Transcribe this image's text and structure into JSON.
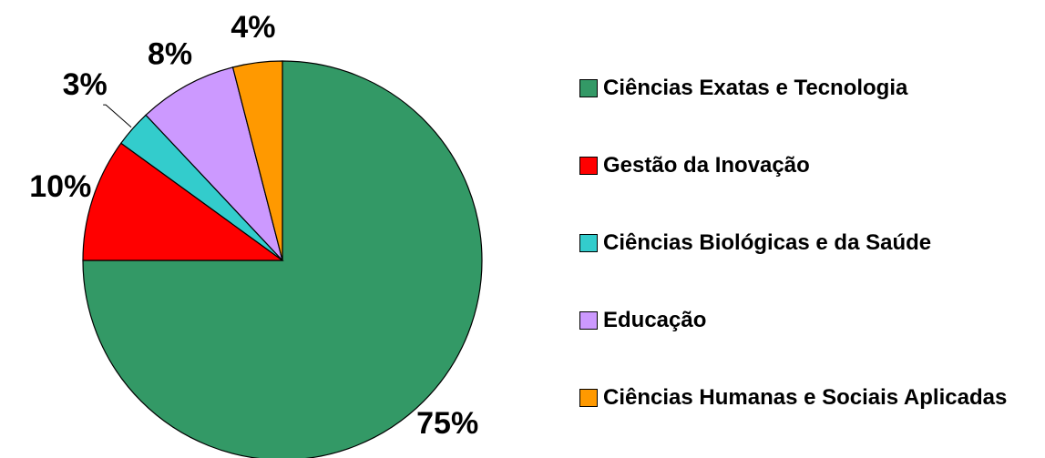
{
  "chart_data": {
    "type": "pie",
    "categories": [
      "Ciências Exatas e Tecnologia",
      "Gestão da Inovação",
      "Ciências Biológicas e da Saúde",
      "Educação",
      "Ciências Humanas e Sociais Aplicadas"
    ],
    "values": [
      75,
      10,
      3,
      8,
      4
    ],
    "value_labels": [
      "75%",
      "10%",
      "3%",
      "8%",
      "4%"
    ],
    "colors": [
      "#339966",
      "#ff0000",
      "#33cccc",
      "#cc99ff",
      "#ff9900"
    ],
    "legend": "right"
  }
}
